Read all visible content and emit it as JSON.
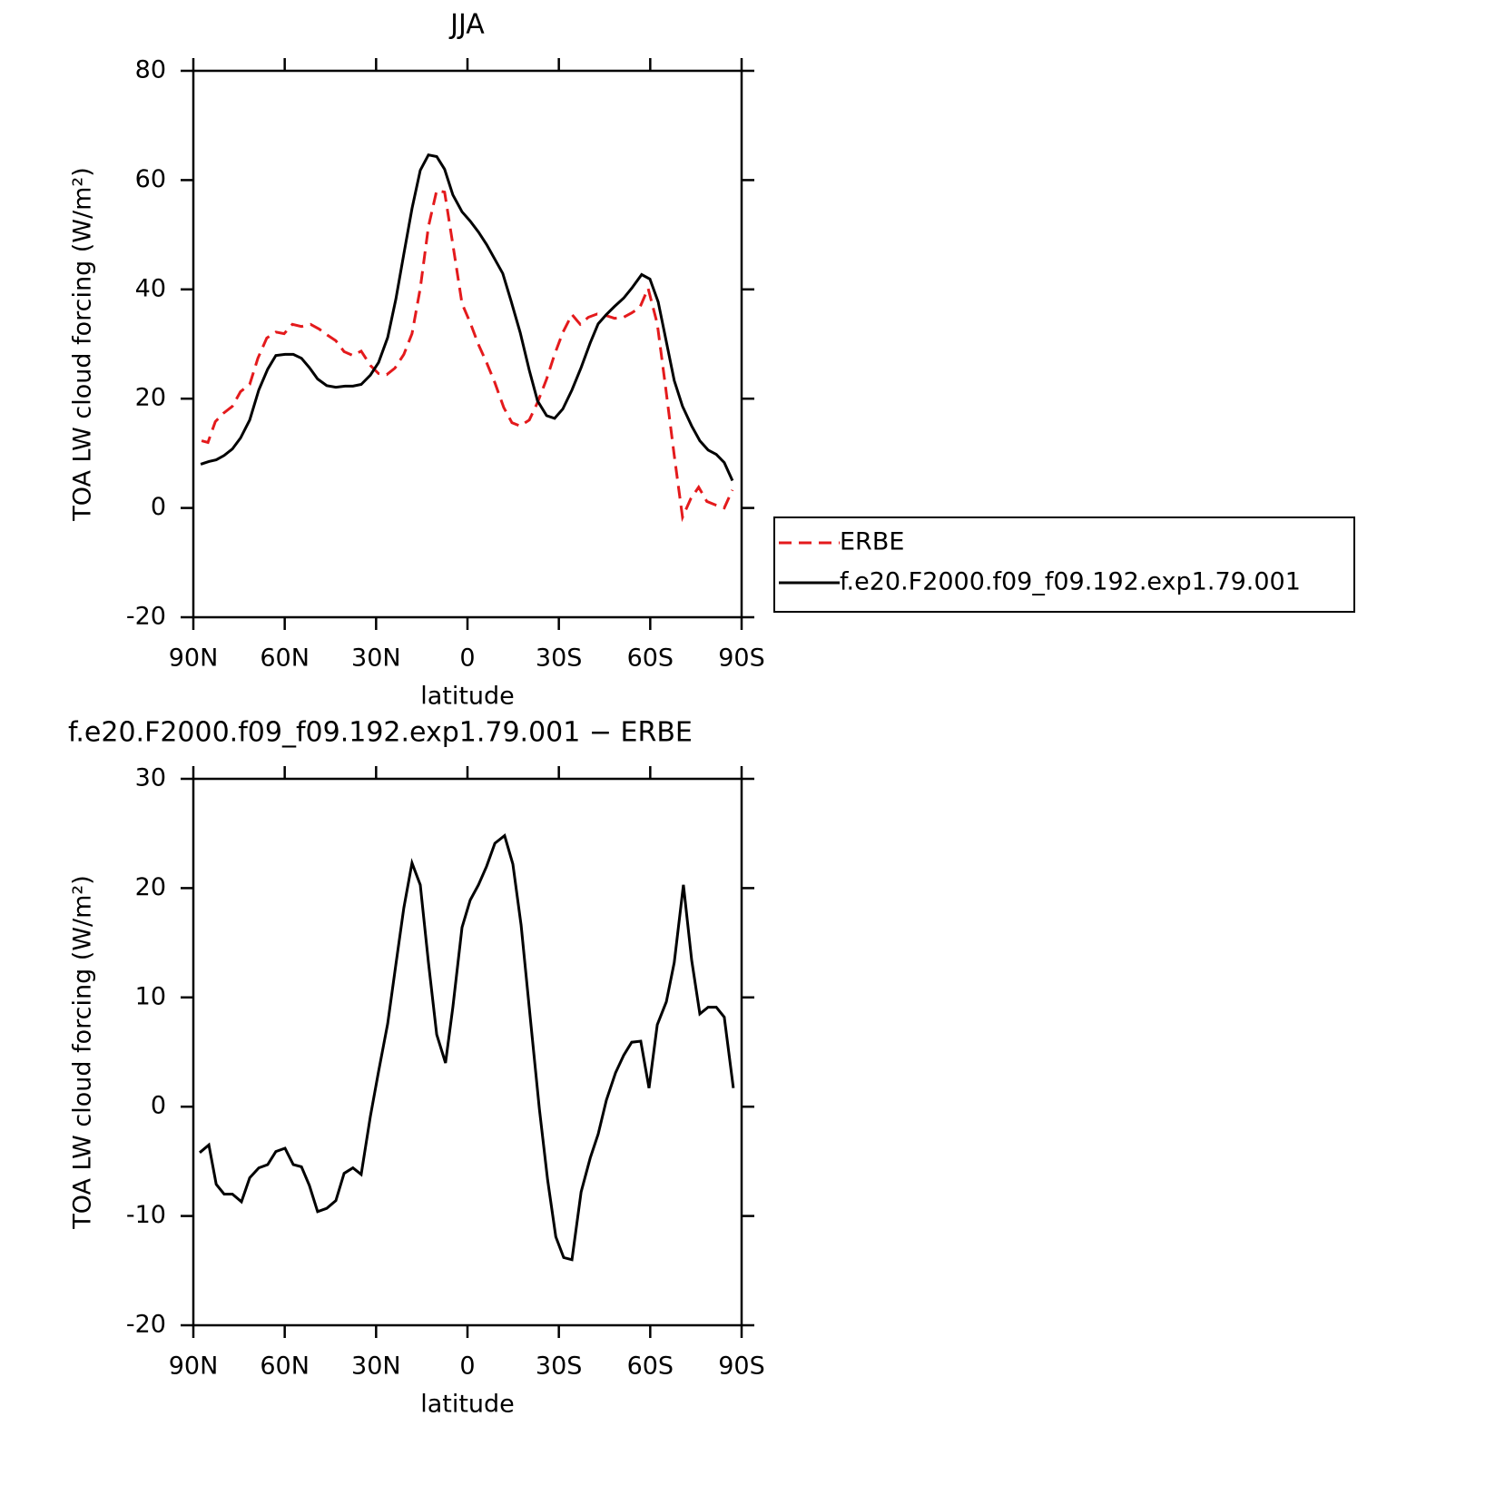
{
  "chart_data": [
    {
      "type": "line",
      "title": "JJA",
      "xlabel": "latitude",
      "ylabel": "TOA LW cloud forcing (W/m²)",
      "xlim": [
        90,
        -90
      ],
      "xticks": [
        {
          "value": 90,
          "label": "90N"
        },
        {
          "value": 60,
          "label": "60N"
        },
        {
          "value": 30,
          "label": "30N"
        },
        0,
        {
          "value": -30,
          "label": "30S"
        },
        {
          "value": -60,
          "label": "60S"
        },
        {
          "value": -90,
          "label": "90S"
        }
      ],
      "ylim": [
        -20,
        80
      ],
      "yticks": [
        -20,
        0,
        20,
        40,
        60,
        80
      ],
      "legend": "right",
      "series": [
        {
          "name": "ERBE",
          "color": "#e41a1c",
          "dash": true,
          "x": [
            87.3,
            85.2,
            82.8,
            80.2,
            77.2,
            74.5,
            71.5,
            68.8,
            65.9,
            62.9,
            60.2,
            57.5,
            54.5,
            51.5,
            48.6,
            45.9,
            43.2,
            40.5,
            37.6,
            34.9,
            31.9,
            29.2,
            26.5,
            23.8,
            20.9,
            18.2,
            15.5,
            12.8,
            10.1,
            7.5,
            4.8,
            1.8,
            -0.9,
            -3.6,
            -6.3,
            -9.0,
            -11.9,
            -14.6,
            -17.3,
            -20.3,
            -23.0,
            -26.0,
            -28.6,
            -31.3,
            -34.3,
            -37.0,
            -39.7,
            -42.6,
            -45.6,
            -48.3,
            -51.3,
            -53.9,
            -56.6,
            -59.3,
            -62.3,
            -65.0,
            -67.9,
            -70.6,
            -73.3,
            -75.9,
            -78.6,
            -81.7,
            -84.3,
            -87.0
          ],
          "values": [
            12.3,
            12.0,
            15.8,
            17.3,
            18.6,
            21.3,
            22.6,
            27.4,
            31.1,
            32.2,
            31.9,
            33.6,
            33.2,
            33.6,
            32.7,
            31.6,
            30.6,
            28.6,
            27.9,
            28.7,
            26.1,
            24.6,
            24.4,
            25.6,
            28.1,
            31.9,
            40.2,
            51.5,
            58.1,
            57.8,
            48.2,
            37.4,
            33.9,
            29.9,
            26.6,
            22.9,
            18.4,
            15.6,
            15.0,
            16.1,
            19.3,
            23.6,
            28.1,
            32.1,
            35.4,
            33.6,
            34.9,
            35.5,
            35.2,
            34.7,
            34.9,
            35.7,
            36.7,
            40.2,
            33.7,
            22.3,
            9.6,
            -1.7,
            1.7,
            3.8,
            1.2,
            0.5,
            0.0,
            3.3
          ]
        },
        {
          "name": "f.e20.F2000.f09_f09.192.exp1.79.001",
          "color": "#000000",
          "dash": false,
          "x": [
            87.6,
            84.9,
            82.5,
            79.9,
            77.2,
            74.5,
            71.5,
            68.5,
            65.6,
            62.9,
            59.9,
            57.2,
            54.5,
            51.9,
            49.2,
            46.2,
            43.2,
            40.2,
            37.6,
            34.9,
            31.9,
            29.2,
            26.2,
            23.5,
            20.9,
            18.2,
            15.5,
            12.8,
            10.1,
            7.5,
            4.8,
            1.8,
            -0.9,
            -3.6,
            -6.3,
            -9.0,
            -11.6,
            -14.3,
            -17.3,
            -20.3,
            -23.0,
            -26.0,
            -28.6,
            -31.3,
            -34.3,
            -37.3,
            -40.3,
            -42.9,
            -45.6,
            -48.3,
            -51.3,
            -53.9,
            -57.2,
            -59.9,
            -62.6,
            -65.3,
            -67.9,
            -70.6,
            -73.6,
            -76.3,
            -79.0,
            -81.7,
            -84.3,
            -87.0
          ],
          "values": [
            8.0,
            8.5,
            8.8,
            9.6,
            10.8,
            12.8,
            16.1,
            21.6,
            25.4,
            27.9,
            28.1,
            28.1,
            27.4,
            25.7,
            23.6,
            22.4,
            22.1,
            22.3,
            22.3,
            22.6,
            24.3,
            26.6,
            31.2,
            38.2,
            46.5,
            54.8,
            61.8,
            64.6,
            64.3,
            62.0,
            57.3,
            54.2,
            52.5,
            50.5,
            48.2,
            45.5,
            42.9,
            37.9,
            32.1,
            25.2,
            19.6,
            16.9,
            16.4,
            18.1,
            21.6,
            25.7,
            30.2,
            33.7,
            35.4,
            36.9,
            38.4,
            40.2,
            42.7,
            41.9,
            37.7,
            30.4,
            23.3,
            18.6,
            15.0,
            12.3,
            10.6,
            9.8,
            8.3,
            5.0
          ]
        }
      ]
    },
    {
      "type": "line",
      "title": "f.e20.F2000.f09_f09.192.exp1.79.001 − ERBE",
      "xlabel": "latitude",
      "ylabel": "TOA LW cloud forcing (W/m²)",
      "xlim": [
        90,
        -90
      ],
      "xticks": [
        {
          "value": 90,
          "label": "90N"
        },
        {
          "value": 60,
          "label": "60N"
        },
        {
          "value": 30,
          "label": "30N"
        },
        0,
        {
          "value": -30,
          "label": "30S"
        },
        {
          "value": -60,
          "label": "60S"
        },
        {
          "value": -90,
          "label": "90S"
        }
      ],
      "ylim": [
        -20,
        30
      ],
      "yticks": [
        -20,
        -10,
        0,
        10,
        20,
        30
      ],
      "series": [
        {
          "color": "#000000",
          "dash": false,
          "x": [
            87.9,
            84.9,
            82.5,
            79.9,
            77.2,
            74.2,
            71.5,
            68.5,
            65.6,
            62.9,
            59.9,
            57.2,
            54.5,
            51.9,
            49.2,
            46.2,
            43.2,
            40.5,
            37.6,
            34.9,
            31.9,
            29.2,
            26.2,
            23.5,
            20.9,
            18.2,
            15.5,
            12.8,
            10.1,
            7.2,
            4.8,
            1.8,
            -0.9,
            -3.6,
            -6.3,
            -9.0,
            -12.2,
            -14.9,
            -17.6,
            -20.6,
            -23.6,
            -26.3,
            -29.0,
            -31.6,
            -34.3,
            -37.3,
            -40.3,
            -42.9,
            -45.6,
            -48.6,
            -51.3,
            -53.9,
            -56.9,
            -59.6,
            -62.3,
            -65.3,
            -67.9,
            -70.9,
            -73.6,
            -76.3,
            -79.0,
            -81.7,
            -84.3,
            -87.3
          ],
          "values": [
            -4.2,
            -3.5,
            -7.1,
            -8.0,
            -8.0,
            -8.7,
            -6.5,
            -5.6,
            -5.3,
            -4.1,
            -3.8,
            -5.3,
            -5.5,
            -7.2,
            -9.6,
            -9.3,
            -8.6,
            -6.1,
            -5.6,
            -6.2,
            -0.9,
            3.2,
            7.6,
            13.0,
            18.2,
            22.3,
            20.3,
            13.2,
            6.6,
            4.0,
            9.1,
            16.4,
            18.9,
            20.3,
            22.0,
            24.1,
            24.8,
            22.2,
            16.6,
            8.2,
            -0.2,
            -6.7,
            -11.9,
            -13.8,
            -14.0,
            -7.8,
            -4.7,
            -2.5,
            0.6,
            3.1,
            4.7,
            5.9,
            6.0,
            1.7,
            7.5,
            9.6,
            13.2,
            20.3,
            13.4,
            8.5,
            9.1,
            9.1,
            8.2,
            1.7
          ]
        }
      ]
    }
  ]
}
